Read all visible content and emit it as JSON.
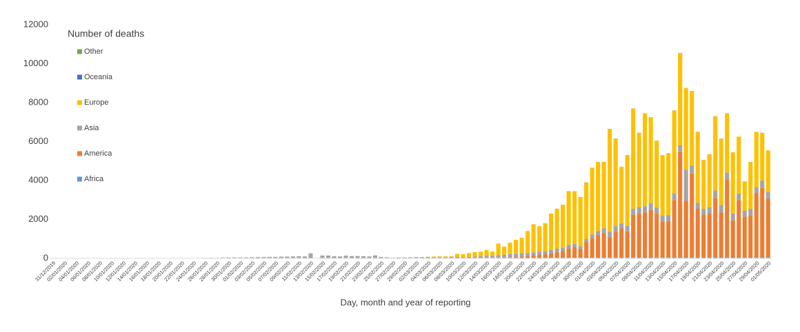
{
  "chart_data": {
    "type": "stacked-bar",
    "legend_title": "Number of deaths",
    "x_label": "Day, month and year of reporting",
    "categories": [
      "31/12/2019",
      null,
      "02/01/2020",
      null,
      "04/01/2020",
      null,
      "06/01/2020",
      null,
      "08/01/2020",
      null,
      "10/01/2020",
      null,
      "12/01/2020",
      null,
      "14/01/2020",
      null,
      "16/01/2020",
      null,
      "18/01/2020",
      null,
      "20/01/2020",
      null,
      "22/01/2020",
      null,
      "24/01/2020",
      null,
      "26/01/2020",
      null,
      "28/01/2020",
      null,
      "30/01/2020",
      null,
      "01/02/2020",
      null,
      "03/02/2020",
      null,
      "05/02/2020",
      null,
      "07/02/2020",
      null,
      "09/02/2020",
      null,
      "11/02/2020",
      null,
      "13/02/2020",
      null,
      "15/02/2020",
      null,
      "17/02/2020",
      null,
      "19/02/2020",
      null,
      "21/02/2020",
      null,
      "23/02/2020",
      null,
      "25/02/2020",
      null,
      "27/02/2020",
      null,
      "29/02/2020",
      null,
      "02/03/2020",
      null,
      "04/03/2020",
      null,
      "06/03/2020",
      null,
      "08/03/2020",
      null,
      "10/03/2020",
      null,
      "12/03/2020",
      null,
      "14/03/2020",
      null,
      "16/03/2020",
      null,
      "18/03/2020",
      null,
      "20/03/2020",
      null,
      "22/03/2020",
      null,
      "24/03/2020",
      null,
      "26/03/2020",
      null,
      "28/03/2020",
      null,
      "30/03/2020",
      null,
      "01/04/2020",
      null,
      "03/04/2020",
      null,
      "05/04/2020",
      null,
      "07/04/2020",
      null,
      "09/04/2020",
      null,
      "11/04/2020",
      null,
      "13/04/2020",
      null,
      "15/04/2020",
      null,
      "17/04/2020",
      null,
      "19/04/2020",
      null,
      "21/04/2020",
      null,
      "23/04/2020",
      null,
      "25/04/2020",
      null,
      "27/04/2020",
      null,
      "29/04/2020",
      null,
      "01/05/2020"
    ],
    "series": [
      {
        "name": "Africa",
        "color": "#5b9bd5",
        "values": [
          0,
          0,
          0,
          0,
          0,
          0,
          0,
          0,
          0,
          0,
          0,
          0,
          0,
          0,
          0,
          0,
          0,
          0,
          0,
          0,
          0,
          0,
          0,
          0,
          0,
          0,
          0,
          0,
          0,
          0,
          0,
          0,
          0,
          0,
          0,
          0,
          0,
          0,
          0,
          0,
          0,
          0,
          0,
          0,
          0,
          0,
          0,
          0,
          0,
          0,
          0,
          0,
          0,
          0,
          0,
          0,
          0,
          0,
          0,
          0,
          0,
          0,
          0,
          0,
          0,
          0,
          0,
          0,
          0,
          1,
          0,
          1,
          0,
          1,
          1,
          2,
          2,
          3,
          3,
          4,
          3,
          5,
          8,
          8,
          10,
          12,
          15,
          20,
          20,
          25,
          25,
          30,
          30,
          35,
          40,
          40,
          45,
          40,
          40,
          45,
          50,
          55,
          55,
          45,
          40,
          45,
          50,
          60,
          55,
          60,
          50,
          45,
          50,
          55,
          60,
          60,
          55,
          50,
          45,
          50,
          60,
          65,
          60
        ]
      },
      {
        "name": "America",
        "color": "#ed7d31",
        "values": [
          0,
          0,
          0,
          0,
          0,
          0,
          0,
          0,
          0,
          0,
          0,
          0,
          0,
          0,
          0,
          0,
          0,
          0,
          0,
          0,
          0,
          0,
          0,
          0,
          0,
          0,
          0,
          0,
          0,
          0,
          0,
          0,
          0,
          0,
          0,
          0,
          0,
          0,
          0,
          0,
          0,
          0,
          0,
          0,
          0,
          0,
          0,
          0,
          0,
          0,
          0,
          0,
          0,
          0,
          0,
          0,
          0,
          0,
          0,
          0,
          1,
          0,
          2,
          1,
          3,
          1,
          3,
          2,
          3,
          5,
          5,
          8,
          10,
          15,
          20,
          25,
          30,
          40,
          60,
          70,
          90,
          100,
          150,
          180,
          200,
          250,
          300,
          350,
          500,
          550,
          450,
          800,
          1000,
          1150,
          1250,
          1050,
          1300,
          1500,
          1350,
          2200,
          2250,
          2300,
          2450,
          2250,
          1850,
          1850,
          2950,
          5400,
          2900,
          4300,
          2500,
          2200,
          2250,
          3050,
          2300,
          4000,
          1900,
          2950,
          2100,
          2150,
          3300,
          3550,
          3000
        ]
      },
      {
        "name": "Asia",
        "color": "#a5a5a5",
        "values": [
          0,
          0,
          0,
          0,
          0,
          0,
          0,
          0,
          0,
          0,
          0,
          1,
          0,
          0,
          0,
          0,
          0,
          1,
          0,
          1,
          1,
          3,
          0,
          8,
          16,
          15,
          24,
          26,
          26,
          38,
          43,
          46,
          45,
          46,
          57,
          64,
          65,
          73,
          73,
          86,
          89,
          97,
          108,
          97,
          254,
          13,
          143,
          142,
          105,
          98,
          136,
          115,
          118,
          109,
          97,
          150,
          71,
          52,
          29,
          44,
          47,
          50,
          60,
          60,
          65,
          60,
          60,
          55,
          70,
          70,
          60,
          70,
          80,
          90,
          100,
          100,
          130,
          140,
          160,
          160,
          170,
          170,
          150,
          160,
          150,
          170,
          180,
          160,
          170,
          160,
          150,
          160,
          200,
          220,
          250,
          280,
          300,
          250,
          280,
          300,
          320,
          330,
          340,
          310,
          300,
          330,
          350,
          350,
          1600,
          400,
          300,
          300,
          320,
          380,
          380,
          350,
          350,
          330,
          300,
          330,
          300,
          380,
          350
        ]
      },
      {
        "name": "Europe",
        "color": "#ffc000",
        "values": [
          0,
          0,
          0,
          0,
          0,
          0,
          0,
          0,
          0,
          0,
          0,
          0,
          0,
          0,
          0,
          0,
          0,
          0,
          0,
          0,
          0,
          0,
          0,
          0,
          0,
          0,
          0,
          0,
          0,
          0,
          0,
          0,
          0,
          0,
          0,
          0,
          0,
          0,
          0,
          0,
          0,
          0,
          0,
          0,
          0,
          0,
          1,
          0,
          0,
          0,
          0,
          0,
          1,
          1,
          1,
          4,
          3,
          2,
          5,
          4,
          8,
          10,
          3,
          9,
          12,
          29,
          37,
          43,
          26,
          154,
          145,
          191,
          230,
          234,
          308,
          223,
          597,
          416,
          576,
          715,
          786,
          1124,
          1440,
          1300,
          1437,
          1866,
          2052,
          2217,
          2756,
          2712,
          2520,
          2905,
          3415,
          3541,
          3405,
          5274,
          4500,
          2906,
          3626,
          5150,
          3825,
          4759,
          4400,
          3442,
          3106,
          3171,
          4245,
          4734,
          4190,
          3836,
          3647,
          2501,
          2727,
          3811,
          3405,
          3036,
          3142,
          2918,
          1503,
          2418,
          2838,
          2452,
          2138
        ]
      },
      {
        "name": "Oceania",
        "color": "#4472c4",
        "values": [
          0,
          0,
          0,
          0,
          0,
          0,
          0,
          0,
          0,
          0,
          0,
          0,
          0,
          0,
          0,
          0,
          0,
          0,
          0,
          0,
          0,
          0,
          0,
          0,
          0,
          0,
          0,
          0,
          0,
          0,
          0,
          0,
          0,
          0,
          0,
          0,
          0,
          0,
          0,
          0,
          0,
          0,
          0,
          0,
          0,
          0,
          0,
          0,
          0,
          0,
          0,
          0,
          0,
          0,
          0,
          0,
          0,
          0,
          0,
          0,
          0,
          0,
          0,
          0,
          0,
          0,
          0,
          0,
          1,
          0,
          0,
          0,
          0,
          0,
          1,
          0,
          1,
          1,
          1,
          1,
          1,
          1,
          2,
          2,
          3,
          2,
          3,
          3,
          4,
          3,
          5,
          5,
          5,
          4,
          5,
          6,
          5,
          4,
          4,
          5,
          5,
          6,
          5,
          3,
          4,
          4,
          5,
          6,
          5,
          4,
          3,
          4,
          3,
          4,
          5,
          4,
          3,
          2,
          2,
          2,
          2,
          3,
          2
        ]
      },
      {
        "name": "Other",
        "color": "#70ad47",
        "values": [
          0,
          0,
          0,
          0,
          0,
          0,
          0,
          0,
          0,
          0,
          0,
          0,
          0,
          0,
          0,
          0,
          0,
          0,
          0,
          0,
          0,
          0,
          0,
          0,
          0,
          0,
          0,
          0,
          0,
          0,
          0,
          0,
          0,
          0,
          0,
          0,
          0,
          0,
          0,
          0,
          0,
          0,
          0,
          0,
          0,
          0,
          0,
          0,
          0,
          0,
          0,
          2,
          0,
          0,
          1,
          0,
          0,
          0,
          0,
          2,
          0,
          0,
          0,
          0,
          0,
          0,
          0,
          0,
          0,
          0,
          0,
          0,
          0,
          0,
          0,
          0,
          0,
          0,
          0,
          0,
          0,
          0,
          0,
          0,
          0,
          0,
          0,
          0,
          0,
          0,
          0,
          0,
          0,
          0,
          0,
          0,
          0,
          0,
          0,
          0,
          0,
          0,
          0,
          0,
          0,
          0,
          0,
          0,
          0,
          0,
          0,
          0,
          0,
          0,
          0,
          0,
          0,
          0,
          0,
          0,
          0,
          0,
          0
        ]
      }
    ],
    "ylim": [
      0,
      12000
    ],
    "yticks": [
      0,
      2000,
      4000,
      6000,
      8000,
      10000,
      12000
    ],
    "grid": false
  }
}
